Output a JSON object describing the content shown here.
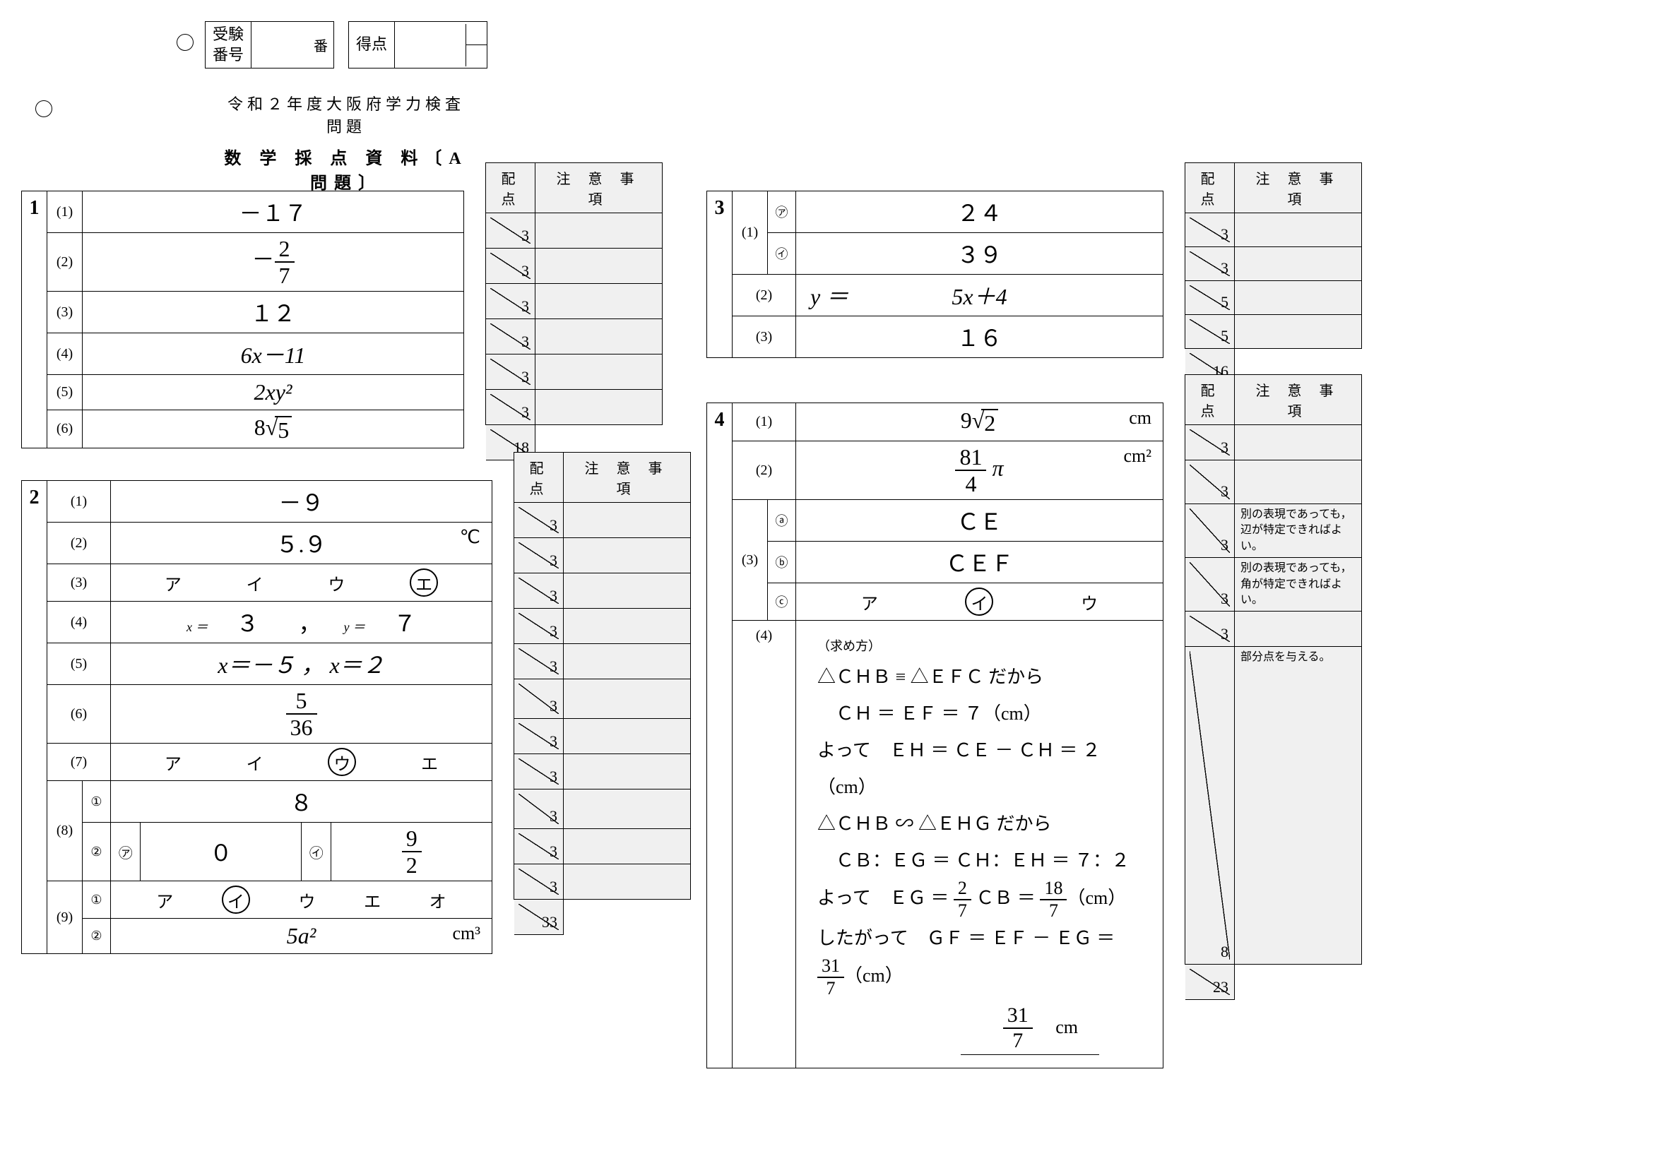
{
  "header": {
    "exam_no_label": "受験\n番号",
    "ban": "番",
    "score_label": "得点"
  },
  "titles": {
    "line1": "令和２年度大阪府学力検査問題",
    "line2": "数 学 採 点 資 料〔A問題〕"
  },
  "score_headers": {
    "haiten": "配 点",
    "note": "注 意 事 項"
  },
  "q1": {
    "num": "1",
    "rows": [
      {
        "s": "(1)",
        "a": "－１７",
        "pt": "3"
      },
      {
        "s": "(2)",
        "a": "frac:-2/7",
        "pt": "3"
      },
      {
        "s": "(3)",
        "a": "１２",
        "pt": "3"
      },
      {
        "s": "(4)",
        "a": "6x－11",
        "pt": "3"
      },
      {
        "s": "(5)",
        "a": "2xy²",
        "pt": "3"
      },
      {
        "s": "(6)",
        "a": "8√5",
        "pt": "3"
      }
    ],
    "total": "18"
  },
  "q2": {
    "num": "2",
    "total": "33",
    "r1": {
      "s": "(1)",
      "a": "－９",
      "pt": "3"
    },
    "r2": {
      "s": "(2)",
      "a": "５.９",
      "unit": "℃",
      "pt": "3"
    },
    "r3": {
      "s": "(3)",
      "choices": [
        "ア",
        "イ",
        "ウ",
        "エ"
      ],
      "sel": 3,
      "pt": "3"
    },
    "r4": {
      "s": "(4)",
      "xlbl": "x ＝",
      "xv": "３",
      "ylbl": "y ＝",
      "yv": "７",
      "comma": "，",
      "pt": "3"
    },
    "r5": {
      "s": "(5)",
      "a": "x＝－５ ， x＝２",
      "pt": "3"
    },
    "r6": {
      "s": "(6)",
      "a": "frac:5/36",
      "pt": "3"
    },
    "r7": {
      "s": "(7)",
      "choices": [
        "ア",
        "イ",
        "ウ",
        "エ"
      ],
      "sel": 2,
      "pt": "3"
    },
    "r8a": {
      "s": "(8)",
      "sub": "①",
      "a": "８",
      "pt": "3"
    },
    "r8b": {
      "sub": "②",
      "l1": "㋐",
      "v1": "０",
      "l2": "㋑",
      "v2": "frac:9/2",
      "pt": "3"
    },
    "r9a": {
      "s": "(9)",
      "sub": "①",
      "choices": [
        "ア",
        "イ",
        "ウ",
        "エ",
        "オ"
      ],
      "sel": 1,
      "pt": "3"
    },
    "r9b": {
      "sub": "②",
      "a": "5a²",
      "unit": "cm³",
      "pt": "3"
    }
  },
  "q3": {
    "num": "3",
    "total": "16",
    "r1a": {
      "s": "(1)",
      "sub": "㋐",
      "a": "２４",
      "pt": "3"
    },
    "r1b": {
      "sub": "㋑",
      "a": "３９",
      "pt": "3"
    },
    "r2": {
      "s": "(2)",
      "lbl": "y ＝",
      "a": "5x＋4",
      "pt": "5"
    },
    "r3": {
      "s": "(3)",
      "a": "１６",
      "pt": "5"
    }
  },
  "q4": {
    "num": "4",
    "total": "23",
    "r1": {
      "s": "(1)",
      "a": "9√2",
      "unit": "cm",
      "pt": "3"
    },
    "r2": {
      "s": "(2)",
      "a": "frac:81/4",
      "suffix": "π",
      "unit": "cm²",
      "pt": "3"
    },
    "r3a": {
      "s": "(3)",
      "sub": "ⓐ",
      "a": "ＣＥ",
      "pt": "3",
      "note": "別の表現であっても，辺が特定できればよい。"
    },
    "r3b": {
      "sub": "ⓑ",
      "a": "ＣＥＦ",
      "pt": "3",
      "note": "別の表現であっても，角が特定できればよい。"
    },
    "r3c": {
      "sub": "ⓒ",
      "choices": [
        "ア",
        "イ",
        "ウ"
      ],
      "sel": 1,
      "pt": "3"
    },
    "r4": {
      "s": "(4)",
      "pt": "8",
      "note": "部分点を与える。",
      "lbl": "（求め方）",
      "lines": [
        "△ＣＨＢ ≡ △ＥＦＣ だから",
        "　ＣＨ ＝ ＥＦ ＝ ７（cm）",
        "よって　ＥＨ ＝ ＣＥ － ＣＨ ＝ ２（cm）",
        "△ＣＨＢ ∽ △ＥＨＧ だから",
        "　ＣＢ：ＥＧ ＝ ＣＨ：ＥＨ ＝ ７：２"
      ],
      "l6_a": "よって　ＥＧ ＝ ",
      "l6_f1": "frac:2/7",
      "l6_b": " ＣＢ ＝ ",
      "l6_f2": "frac:18/7",
      "l6_c": "（cm）",
      "l7_a": "したがって　ＧＦ ＝ ＥＦ － ＥＧ ＝ ",
      "l7_f": "frac:31/7",
      "l7_b": "（cm）",
      "final": "frac:31/7",
      "final_unit": "cm"
    }
  }
}
